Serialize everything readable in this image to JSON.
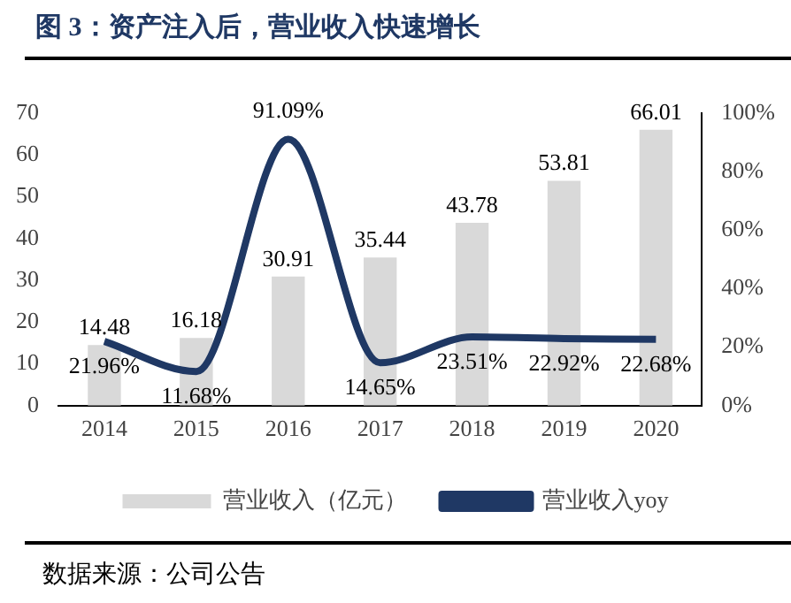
{
  "chart_data": {
    "type": "bar",
    "title": "图 3：资产注入后，营业收入快速增长",
    "categories": [
      "2014",
      "2015",
      "2016",
      "2017",
      "2018",
      "2019",
      "2020"
    ],
    "series": [
      {
        "name": "营业收入（亿元）",
        "color": "#d9d9d9",
        "values": [
          14.48,
          16.18,
          30.91,
          35.44,
          43.78,
          53.81,
          66.01
        ],
        "value_labels": [
          "14.48",
          "16.18",
          "30.91",
          "35.44",
          "43.78",
          "53.81",
          "66.01"
        ]
      },
      {
        "name": "营业收入yoy",
        "type": "line",
        "axis": "y2",
        "color": "#1f3864",
        "values": [
          21.96,
          11.68,
          91.09,
          14.65,
          23.51,
          22.92,
          22.68
        ],
        "value_labels": [
          "21.96%",
          "11.68%",
          "91.09%",
          "14.65%",
          "23.51%",
          "22.92%",
          "22.68%"
        ]
      }
    ],
    "ylim": [
      0,
      70
    ],
    "yticks": [
      0,
      10,
      20,
      30,
      40,
      50,
      60,
      70
    ],
    "y2lim": [
      0,
      100
    ],
    "y2ticks": [
      {
        "value": 0,
        "label": "0%"
      },
      {
        "value": 20,
        "label": "20%"
      },
      {
        "value": 40,
        "label": "40%"
      },
      {
        "value": 60,
        "label": "60%"
      },
      {
        "value": 80,
        "label": "80%"
      },
      {
        "value": 100,
        "label": "100%"
      }
    ],
    "grid": false,
    "legend": "bottom",
    "marker": "none",
    "line_style": "solid",
    "annotations": [
      "数据来源：公司公告"
    ]
  }
}
